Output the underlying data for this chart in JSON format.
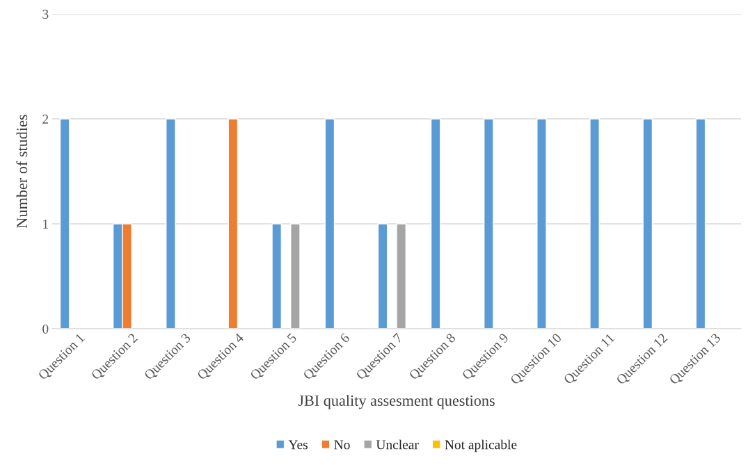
{
  "chart_data": {
    "type": "bar",
    "xlabel": "JBI quality assesment questions",
    "ylabel": "Number of studies",
    "categories": [
      "Question 1",
      "Question 2",
      "Question 3",
      "Question 4",
      "Question 5",
      "Question 6",
      "Question 7",
      "Question 8",
      "Question 9",
      "Question 10",
      "Question 11",
      "Question 12",
      "Question 13"
    ],
    "series": [
      {
        "name": "Yes",
        "color": "#5b9bd5",
        "values": [
          2,
          1,
          2,
          null,
          1,
          2,
          1,
          2,
          2,
          2,
          2,
          2,
          2
        ]
      },
      {
        "name": "No",
        "color": "#ed7d31",
        "values": [
          null,
          1,
          null,
          2,
          null,
          null,
          null,
          null,
          null,
          null,
          null,
          null,
          null
        ]
      },
      {
        "name": "Unclear",
        "color": "#a5a5a5",
        "values": [
          null,
          null,
          null,
          null,
          1,
          null,
          1,
          null,
          null,
          null,
          null,
          null,
          null
        ]
      },
      {
        "name": "Not aplicable",
        "color": "#ffc000",
        "values": [
          null,
          null,
          null,
          null,
          null,
          null,
          null,
          null,
          null,
          null,
          null,
          null,
          null
        ]
      }
    ],
    "ylim": [
      0,
      3
    ],
    "yticks": [
      0,
      1,
      2,
      3
    ],
    "grid": "y",
    "legend": "bottom"
  }
}
